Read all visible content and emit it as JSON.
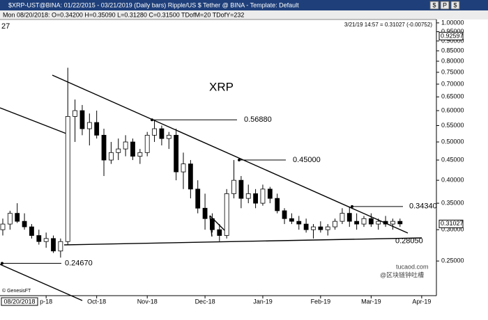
{
  "window": {
    "title": "$XRP-UST@BINA:  01/22/2015 - 03/21/2019  (Daily bars)    Ripple/US $ Tether @ BINA  -  Template: Default",
    "toolbar": [
      "$",
      "P",
      "$"
    ],
    "status": "Mon  08/20/2018:  O=0.34200  H=0.35090  L=0.31280  C=0.31500  TDofM=20  TDofY=232",
    "left_label": "27",
    "quote": "3/21/19 14:57 = 0.31027 (-0.00752)",
    "source": "© GenesisFT",
    "cursor_date": "08/20/2018",
    "watermark": [
      "tucaod.com",
      "@区块链钟吐槽"
    ]
  },
  "chart_data": {
    "type": "candlestick",
    "title": "XRP",
    "log_scale": true,
    "grid": false,
    "categories": [
      null,
      null,
      null,
      null,
      null,
      null,
      "p-18",
      null,
      null,
      null,
      null,
      null,
      null,
      "Oct-18",
      null,
      null,
      null,
      null,
      null,
      null,
      "Nov-18",
      null,
      null,
      null,
      null,
      null,
      null,
      null,
      "Dec-18",
      null,
      null,
      null,
      null,
      null,
      null,
      null,
      "Jan-19",
      null,
      null,
      null,
      null,
      null,
      null,
      null,
      "Feb-19",
      null,
      null,
      null,
      null,
      null,
      null,
      "Mar-19",
      null,
      null,
      null,
      null,
      null,
      null,
      "Apr-19"
    ],
    "series": [
      {
        "name": "XRP",
        "up_color": "#ffffff",
        "down_color": "#000000",
        "open": [
          0.3,
          0.31,
          0.33,
          0.315,
          0.305,
          0.29,
          0.28,
          0.285,
          0.265,
          0.28,
          0.58,
          0.6,
          0.54,
          0.56,
          0.52,
          0.45,
          0.47,
          0.48,
          0.5,
          0.46,
          0.47,
          0.52,
          0.54,
          0.51,
          0.52,
          0.42,
          0.44,
          0.38,
          0.34,
          0.32,
          0.3,
          0.29,
          0.37,
          0.4,
          0.36,
          0.37,
          0.35,
          0.38,
          0.36,
          0.335,
          0.32,
          0.315,
          0.31,
          0.3,
          0.305,
          0.3,
          0.305,
          0.315,
          0.33,
          0.315,
          0.31,
          0.32,
          0.31,
          0.315,
          0.31,
          0.315,
          null,
          null,
          null
        ],
        "high": [
          0.32,
          0.335,
          0.35,
          0.33,
          0.31,
          0.3,
          0.295,
          0.29,
          0.285,
          0.77,
          0.64,
          0.62,
          0.59,
          0.6,
          0.54,
          0.5,
          0.51,
          0.52,
          0.51,
          0.48,
          0.53,
          0.5688,
          0.55,
          0.53,
          0.54,
          0.47,
          0.45,
          0.4,
          0.37,
          0.33,
          0.31,
          0.38,
          0.45,
          0.41,
          0.39,
          0.38,
          0.39,
          0.385,
          0.37,
          0.34,
          0.33,
          0.325,
          0.32,
          0.31,
          0.315,
          0.31,
          0.32,
          0.34,
          0.3434,
          0.33,
          0.325,
          0.33,
          0.32,
          0.325,
          0.32,
          0.32,
          null,
          null,
          null
        ],
        "low": [
          0.29,
          0.3,
          0.312,
          0.3,
          0.285,
          0.275,
          0.27,
          0.262,
          0.255,
          0.275,
          0.5,
          0.52,
          0.49,
          0.51,
          0.41,
          0.44,
          0.45,
          0.46,
          0.45,
          0.44,
          0.46,
          0.5,
          0.49,
          0.48,
          0.4,
          0.38,
          0.36,
          0.33,
          0.3,
          0.295,
          0.2805,
          0.285,
          0.36,
          0.34,
          0.35,
          0.34,
          0.345,
          0.35,
          0.33,
          0.31,
          0.31,
          0.3,
          0.295,
          0.285,
          0.295,
          0.29,
          0.3,
          0.31,
          0.305,
          0.3,
          0.305,
          0.305,
          0.3,
          0.305,
          0.3,
          0.305,
          null,
          null,
          null
        ],
        "close": [
          0.31,
          0.33,
          0.315,
          0.305,
          0.29,
          0.28,
          0.285,
          0.265,
          0.28,
          0.58,
          0.6,
          0.54,
          0.56,
          0.52,
          0.45,
          0.47,
          0.48,
          0.5,
          0.46,
          0.47,
          0.52,
          0.54,
          0.51,
          0.52,
          0.42,
          0.44,
          0.38,
          0.34,
          0.32,
          0.3,
          0.29,
          0.37,
          0.4,
          0.36,
          0.37,
          0.35,
          0.38,
          0.36,
          0.335,
          0.32,
          0.315,
          0.31,
          0.3,
          0.305,
          0.3,
          0.305,
          0.315,
          0.33,
          0.315,
          0.31,
          0.32,
          0.31,
          0.315,
          0.31,
          0.315,
          0.31027,
          null,
          null,
          null
        ]
      }
    ],
    "ylim": [
      0.206,
      1.02
    ],
    "yticks": [
      {
        "value": 0.25,
        "label": "0.25000"
      },
      {
        "value": 0.3,
        "label": "0.30000"
      },
      {
        "value": 0.35,
        "label": "0.35000"
      },
      {
        "value": 0.4,
        "label": "0.40000"
      },
      {
        "value": 0.45,
        "label": "0.45000"
      },
      {
        "value": 0.5,
        "label": "0.50000"
      },
      {
        "value": 0.55,
        "label": "0.55000"
      },
      {
        "value": 0.6,
        "label": "0.60000"
      },
      {
        "value": 0.65,
        "label": "0.65000"
      },
      {
        "value": 0.7,
        "label": "0.70000"
      },
      {
        "value": 0.75,
        "label": "0.75000"
      },
      {
        "value": 0.8,
        "label": "0.80000"
      },
      {
        "value": 0.85,
        "label": "0.85000"
      },
      {
        "value": 0.9,
        "label": "0.90000"
      },
      {
        "value": 0.95,
        "label": "0.95000"
      },
      {
        "value": 1.0,
        "label": "1.00000"
      }
    ],
    "last_price": 0.31027,
    "top_marker": 0.92597,
    "annotations": [
      {
        "value": 0.5688,
        "label": "0.56880"
      },
      {
        "value": 0.45,
        "label": "0.45000"
      },
      {
        "value": 0.3434,
        "label": "0.34340"
      },
      {
        "value": 0.2805,
        "label": "0.28050"
      },
      {
        "value": 0.2467,
        "label": "0.24670"
      }
    ]
  }
}
